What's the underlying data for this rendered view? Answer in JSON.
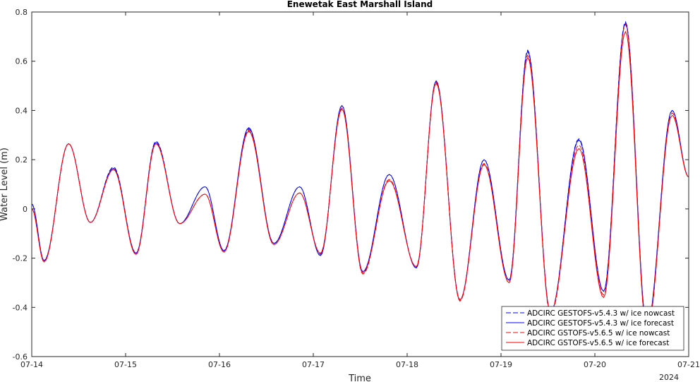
{
  "chart_data": {
    "type": "line",
    "title": "Enewetak East Marshall Island",
    "xlabel": "Time",
    "ylabel": "Water Level (m)",
    "x_tick_labels": [
      "07-14",
      "07-15",
      "07-16",
      "07-17",
      "07-18",
      "07-19",
      "07-20",
      "07-21"
    ],
    "x_year_label": "2024",
    "xlim": [
      "2024-07-14 00:00",
      "2024-07-21 00:00"
    ],
    "ylim": [
      -0.6,
      0.8
    ],
    "y_ticks": [
      -0.6,
      -0.4,
      -0.2,
      0,
      0.2,
      0.4,
      0.6,
      0.8
    ],
    "y_tick_labels": [
      "-0.6",
      "-0.4",
      "-0.2",
      "0",
      "0.2",
      "0.4",
      "0.6",
      "0.8"
    ],
    "grid": false,
    "legend_position": "bottom-right",
    "series": [
      {
        "name": "ADCIRC GESTOFS-v5.4.3 w/ ice nowcast",
        "color": "#0000ff",
        "dash": "dashed",
        "x": [
          "2024-07-14 00:00",
          "2024-07-14 03:10",
          "2024-07-14 09:25",
          "2024-07-14 15:00",
          "2024-07-14 20:55",
          "2024-07-15 02:40",
          "2024-07-15 07:45",
          "2024-07-15 13:50",
          "2024-07-15 20:20",
          "2024-07-16 01:10",
          "2024-07-16 07:30",
          "2024-07-16 13:55",
          "2024-07-16 20:30",
          "2024-07-17 01:50",
          "2024-07-17 07:20",
          "2024-07-17 12:40",
          "2024-07-17 19:25",
          "2024-07-18 02:20",
          "2024-07-18 07:25",
          "2024-07-18 13:30",
          "2024-07-18 19:40",
          "2024-07-19 02:05",
          "2024-07-19 06:50",
          "2024-07-19 12:40",
          "2024-07-19 19:55",
          "2024-07-20 02:15",
          "2024-07-20 07:50",
          "2024-07-20 13:20",
          "2024-07-20 19:45",
          "2024-07-21 00:00"
        ],
        "y": [
          0.02,
          -0.21,
          0.265,
          -0.055,
          0.17,
          -0.18,
          0.275,
          -0.06,
          0.09,
          -0.17,
          0.325,
          -0.14,
          0.09,
          -0.185,
          0.42,
          -0.26,
          0.14,
          -0.24,
          0.52,
          -0.37,
          0.2,
          -0.29,
          0.645,
          -0.42,
          0.285,
          -0.335,
          0.76,
          -0.48,
          0.4,
          0.13
        ]
      },
      {
        "name": "ADCIRC GESTOFS-v5.4.3 w/ ice forecast",
        "color": "#0000ff",
        "dash": "solid",
        "x": [
          "2024-07-14 00:00",
          "2024-07-14 03:10",
          "2024-07-14 09:25",
          "2024-07-14 15:00",
          "2024-07-14 20:55",
          "2024-07-15 02:40",
          "2024-07-15 07:45",
          "2024-07-15 13:50",
          "2024-07-15 20:20",
          "2024-07-16 01:10",
          "2024-07-16 07:30",
          "2024-07-16 13:55",
          "2024-07-16 20:30",
          "2024-07-17 01:50",
          "2024-07-17 07:20",
          "2024-07-17 12:40",
          "2024-07-17 19:25",
          "2024-07-18 02:20",
          "2024-07-18 07:25",
          "2024-07-18 13:30",
          "2024-07-18 19:40",
          "2024-07-19 02:05",
          "2024-07-19 06:50",
          "2024-07-19 12:40",
          "2024-07-19 19:55",
          "2024-07-20 02:15",
          "2024-07-20 07:50",
          "2024-07-20 13:20",
          "2024-07-20 19:45",
          "2024-07-21 00:00"
        ],
        "y": [
          0.02,
          -0.21,
          0.265,
          -0.055,
          0.165,
          -0.18,
          0.27,
          -0.06,
          0.09,
          -0.17,
          0.33,
          -0.14,
          0.09,
          -0.19,
          0.42,
          -0.255,
          0.14,
          -0.24,
          0.52,
          -0.37,
          0.2,
          -0.29,
          0.64,
          -0.42,
          0.28,
          -0.335,
          0.755,
          -0.475,
          0.4,
          0.13
        ]
      },
      {
        "name": "ADCIRC GSTOFS-v5.6.5 w/ ice nowcast",
        "color": "#ff0000",
        "dash": "dashed",
        "x": [
          "2024-07-14 00:00",
          "2024-07-14 03:10",
          "2024-07-14 09:25",
          "2024-07-14 15:00",
          "2024-07-14 20:55",
          "2024-07-15 02:40",
          "2024-07-15 07:45",
          "2024-07-15 13:50",
          "2024-07-15 20:20",
          "2024-07-16 01:10",
          "2024-07-16 07:30",
          "2024-07-16 13:55",
          "2024-07-16 20:30",
          "2024-07-17 01:50",
          "2024-07-17 07:20",
          "2024-07-17 12:40",
          "2024-07-17 19:25",
          "2024-07-18 02:20",
          "2024-07-18 07:25",
          "2024-07-18 13:30",
          "2024-07-18 19:40",
          "2024-07-19 02:05",
          "2024-07-19 06:50",
          "2024-07-19 12:40",
          "2024-07-19 19:55",
          "2024-07-20 02:15",
          "2024-07-20 07:50",
          "2024-07-20 13:20",
          "2024-07-20 19:45",
          "2024-07-21 00:00"
        ],
        "y": [
          0.0,
          -0.215,
          0.265,
          -0.055,
          0.16,
          -0.185,
          0.265,
          -0.06,
          0.06,
          -0.175,
          0.32,
          -0.145,
          0.065,
          -0.18,
          0.41,
          -0.265,
          0.12,
          -0.235,
          0.515,
          -0.375,
          0.185,
          -0.3,
          0.625,
          -0.43,
          0.26,
          -0.35,
          0.75,
          -0.5,
          0.39,
          0.13
        ]
      },
      {
        "name": "ADCIRC GSTOFS-v5.6.5 w/ ice forecast",
        "color": "#ff0000",
        "dash": "solid",
        "x": [
          "2024-07-14 00:00",
          "2024-07-14 03:10",
          "2024-07-14 09:25",
          "2024-07-14 15:00",
          "2024-07-14 20:55",
          "2024-07-15 02:40",
          "2024-07-15 07:45",
          "2024-07-15 13:50",
          "2024-07-15 20:20",
          "2024-07-16 01:10",
          "2024-07-16 07:30",
          "2024-07-16 13:55",
          "2024-07-16 20:30",
          "2024-07-17 01:50",
          "2024-07-17 07:20",
          "2024-07-17 12:40",
          "2024-07-17 19:25",
          "2024-07-18 02:20",
          "2024-07-18 07:25",
          "2024-07-18 13:30",
          "2024-07-18 19:40",
          "2024-07-19 02:05",
          "2024-07-19 06:50",
          "2024-07-19 12:40",
          "2024-07-19 19:55",
          "2024-07-20 02:15",
          "2024-07-20 07:50",
          "2024-07-20 13:20",
          "2024-07-20 19:45",
          "2024-07-21 00:00"
        ],
        "y": [
          0.0,
          -0.215,
          0.265,
          -0.055,
          0.16,
          -0.185,
          0.265,
          -0.06,
          0.06,
          -0.175,
          0.315,
          -0.145,
          0.065,
          -0.18,
          0.405,
          -0.26,
          0.115,
          -0.235,
          0.51,
          -0.37,
          0.18,
          -0.3,
          0.615,
          -0.42,
          0.245,
          -0.36,
          0.72,
          -0.49,
          0.38,
          0.13
        ]
      }
    ]
  }
}
